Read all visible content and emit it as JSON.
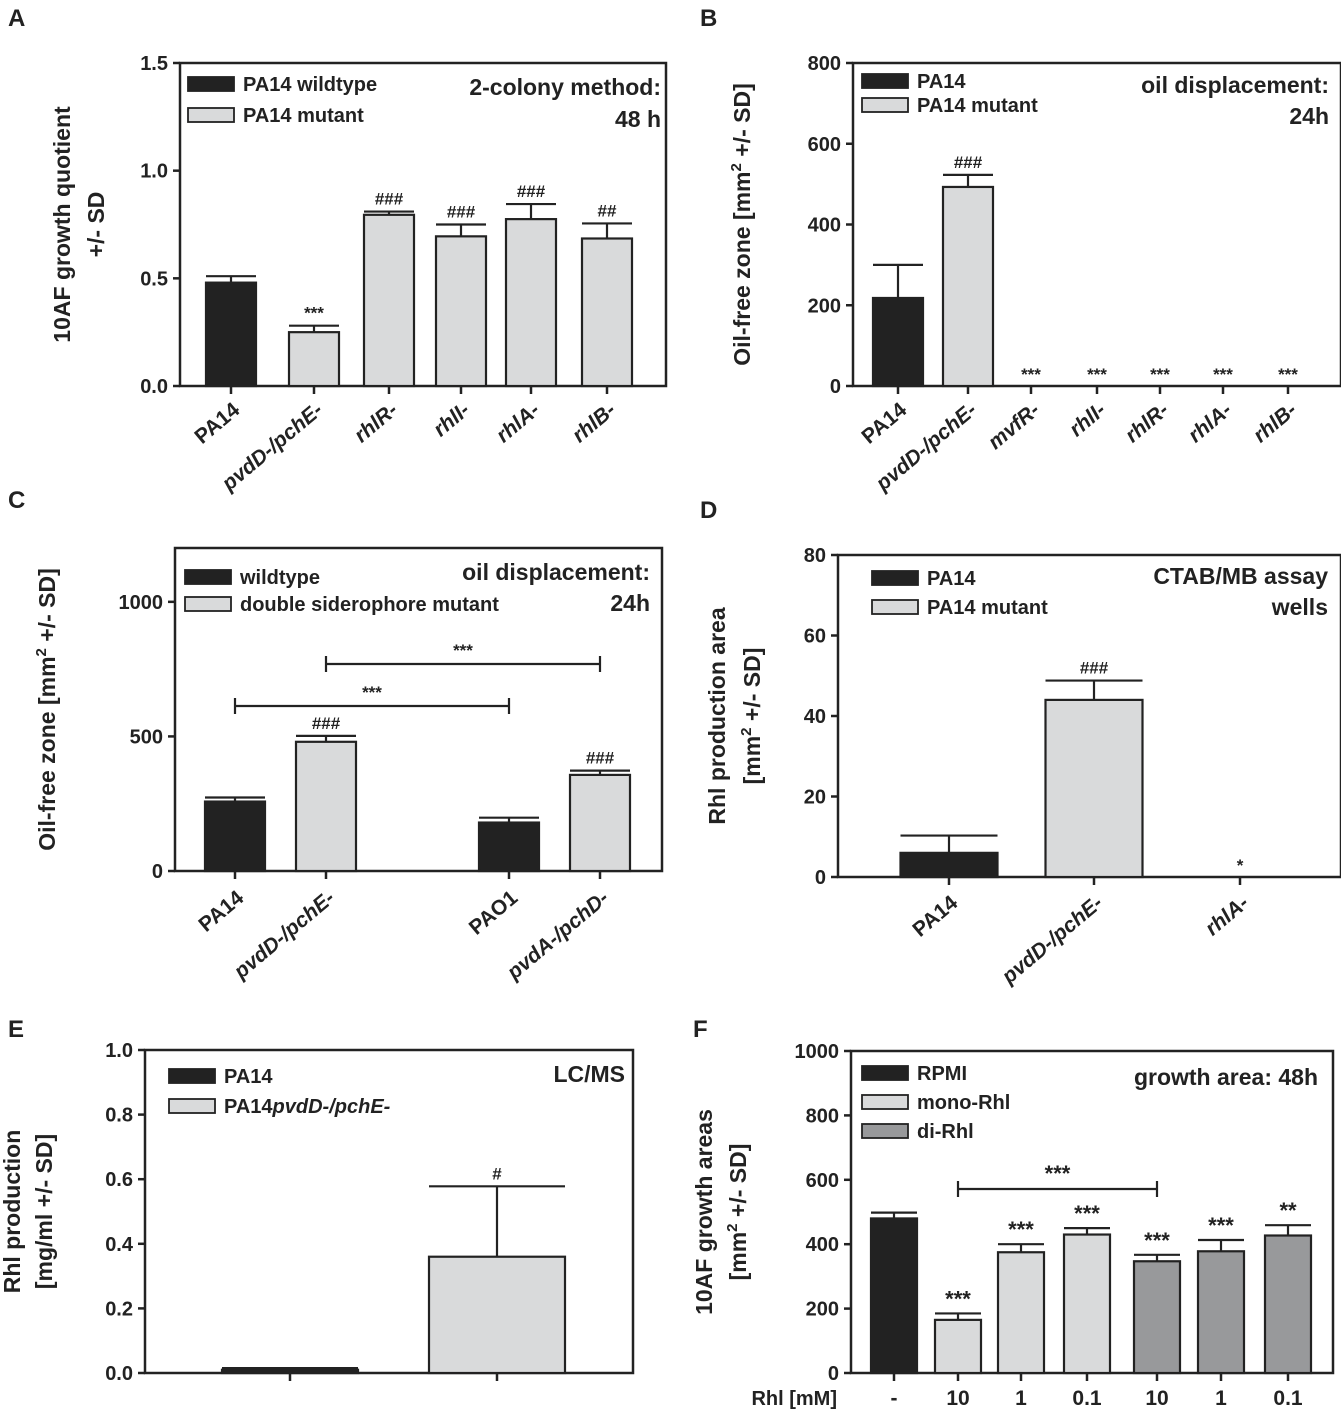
{
  "figure": {
    "panels": [
      "A",
      "B",
      "C",
      "D",
      "E",
      "F"
    ]
  },
  "chart_data": [
    {
      "panel": "A",
      "type": "bar",
      "ylabel": [
        "10AF growth quotient",
        "+/- SD"
      ],
      "ylim": [
        0,
        1.5
      ],
      "yticks": [
        "0.0",
        "0.5",
        "1.0",
        "1.5"
      ],
      "annotation": [
        "2-colony method:",
        "48 h"
      ],
      "legend": [
        {
          "label": "PA14 wildtype",
          "color": "#222222"
        },
        {
          "label": "PA14 mutant",
          "color": "#d9dadb"
        }
      ],
      "categories": [
        "PA14",
        "pvdD-/pchE-",
        "rhlR-",
        "rhlI-",
        "rhlA-",
        "rhlB-"
      ],
      "italic": [
        false,
        true,
        true,
        true,
        true,
        true
      ],
      "values": [
        0.48,
        0.25,
        0.795,
        0.695,
        0.775,
        0.685
      ],
      "errors": [
        0.03,
        0.03,
        0.015,
        0.055,
        0.07,
        0.07
      ],
      "colors": [
        "#222222",
        "#d9dadb",
        "#d9dadb",
        "#d9dadb",
        "#d9dadb",
        "#d9dadb"
      ],
      "significance": [
        "",
        "***",
        "###",
        "###",
        "###",
        "##"
      ]
    },
    {
      "panel": "B",
      "type": "bar",
      "ylabel": [
        "Oil-free zone [mm",
        "2",
        " +/- SD]"
      ],
      "ylim": [
        0,
        800
      ],
      "yticks": [
        "0",
        "200",
        "400",
        "600",
        "800"
      ],
      "annotation": [
        "oil displacement:",
        "24h"
      ],
      "legend": [
        {
          "label": "PA14",
          "color": "#222222"
        },
        {
          "label": "PA14 mutant",
          "color": "#d9dadb"
        }
      ],
      "categories": [
        "PA14",
        "pvdD-/pchE-",
        "mvfR-",
        "rhlI-",
        "rhlR-",
        "rhlA-",
        "rhlB-"
      ],
      "italic": [
        false,
        true,
        true,
        true,
        true,
        true,
        true
      ],
      "values": [
        218,
        493,
        0,
        0,
        0,
        0,
        0
      ],
      "errors": [
        82,
        30,
        0,
        0,
        0,
        0,
        0
      ],
      "colors": [
        "#222222",
        "#d9dadb",
        "#d9dadb",
        "#d9dadb",
        "#d9dadb",
        "#d9dadb",
        "#d9dadb"
      ],
      "significance": [
        "",
        "###",
        "***",
        "***",
        "***",
        "***",
        "***"
      ]
    },
    {
      "panel": "C",
      "type": "bar",
      "ylabel": [
        "Oil-free zone [mm",
        "2",
        " +/- SD]"
      ],
      "ylim": [
        0,
        1200
      ],
      "yticks": [
        "0",
        "500",
        "1000"
      ],
      "annotation": [
        "oil displacement:",
        "24h"
      ],
      "legend": [
        {
          "label": "wildtype",
          "color": "#222222"
        },
        {
          "label": "double siderophore mutant",
          "color": "#d9dadb"
        }
      ],
      "categories": [
        "PA14",
        "pvdD-/pchE-",
        "PAO1",
        "pvdA-/pchD-"
      ],
      "italic": [
        false,
        true,
        false,
        true
      ],
      "values": [
        258,
        480,
        180,
        357
      ],
      "errors": [
        15,
        22,
        18,
        16
      ],
      "colors": [
        "#222222",
        "#d9dadb",
        "#222222",
        "#d9dadb"
      ],
      "significance": [
        "",
        "###",
        "",
        "###"
      ],
      "brackets": [
        {
          "from": 0,
          "to": 2,
          "label": "***"
        },
        {
          "from": 1,
          "to": 3,
          "label": "***"
        }
      ]
    },
    {
      "panel": "D",
      "type": "bar",
      "ylabel": [
        "Rhl production area",
        "[mm",
        "2",
        " +/- SD]"
      ],
      "ylim": [
        0,
        80
      ],
      "yticks": [
        "0",
        "20",
        "40",
        "60",
        "80"
      ],
      "annotation": [
        "CTAB/MB assay",
        "wells"
      ],
      "legend": [
        {
          "label": "PA14",
          "color": "#222222"
        },
        {
          "label": "PA14 mutant",
          "color": "#d9dadb"
        }
      ],
      "categories": [
        "PA14",
        "pvdD-/pchE-",
        "rhlA-"
      ],
      "italic": [
        false,
        true,
        true
      ],
      "values": [
        6,
        44,
        0
      ],
      "errors": [
        4.3,
        4.8,
        0
      ],
      "colors": [
        "#222222",
        "#d9dadb",
        "#d9dadb"
      ],
      "significance": [
        "",
        "###",
        "*"
      ]
    },
    {
      "panel": "E",
      "type": "bar",
      "ylabel": [
        "Rhl production",
        "[mg/ml +/- SD]"
      ],
      "ylim": [
        0,
        1.0
      ],
      "yticks": [
        "0.0",
        "0.2",
        "0.4",
        "0.6",
        "0.8",
        "1.0"
      ],
      "annotation": [
        "LC/MS"
      ],
      "legend": [
        {
          "label": "PA14",
          "color": "#222222"
        },
        {
          "label": "PA14",
          "label_italic": "pvdD-/pchE-",
          "color": "#d9dadb"
        }
      ],
      "categories": [
        "",
        ""
      ],
      "italic": [
        false,
        false
      ],
      "values": [
        0.01,
        0.36
      ],
      "errors": [
        0.005,
        0.218
      ],
      "colors": [
        "#222222",
        "#d9dadb"
      ],
      "significance": [
        "",
        "#"
      ]
    },
    {
      "panel": "F",
      "type": "bar",
      "ylabel": [
        "10AF growth areas",
        "[mm",
        "2",
        " +/- SD]"
      ],
      "ylim": [
        0,
        1000
      ],
      "yticks": [
        "0",
        "200",
        "400",
        "600",
        "800",
        "1000"
      ],
      "annotation": [
        "growth area: 48h"
      ],
      "legend": [
        {
          "label": "RPMI",
          "color": "#222222"
        },
        {
          "label": "mono-Rhl",
          "color": "#d9dadb"
        },
        {
          "label": "di-Rhl",
          "color": "#98999b"
        }
      ],
      "xheader": "Rhl [mM]",
      "categories": [
        "-",
        "10",
        "1",
        "0.1",
        "10",
        "1",
        "0.1"
      ],
      "italic": [
        false,
        false,
        false,
        false,
        false,
        false,
        false
      ],
      "values": [
        480,
        165,
        375,
        430,
        347,
        378,
        427
      ],
      "errors": [
        18,
        20,
        25,
        20,
        20,
        35,
        32
      ],
      "colors": [
        "#222222",
        "#d9dadb",
        "#d9dadb",
        "#d9dadb",
        "#98999b",
        "#98999b",
        "#98999b"
      ],
      "significance": [
        "",
        "***",
        "***",
        "***",
        "***",
        "***",
        "**"
      ],
      "brackets": [
        {
          "from": 1,
          "to": 4,
          "label": "***"
        }
      ]
    }
  ]
}
